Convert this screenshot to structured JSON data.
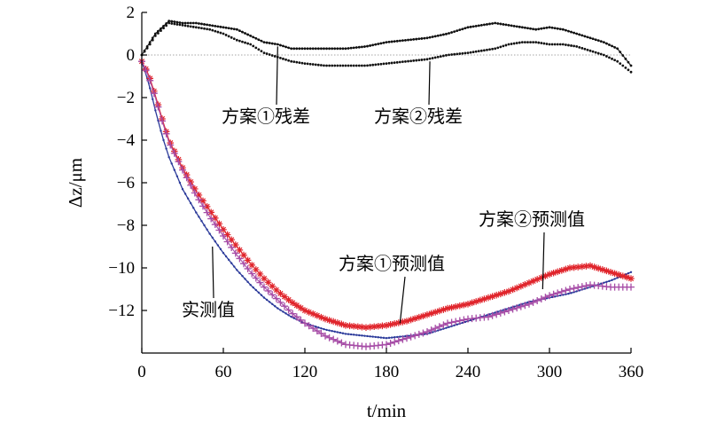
{
  "chart_data": {
    "type": "line",
    "xlabel": "t/min",
    "ylabel": "Δz/μm",
    "xlim": [
      0,
      360
    ],
    "ylim": [
      -14,
      2
    ],
    "x_ticks": [
      0,
      60,
      120,
      180,
      240,
      300,
      360
    ],
    "y_ticks": [
      2,
      0,
      -2,
      -4,
      -6,
      -8,
      -10,
      -12
    ],
    "y_tick_labels": [
      "2",
      "0",
      "−2",
      "−4",
      "−6",
      "−8",
      "−10",
      "−12"
    ],
    "zero_reference_line": true,
    "series": [
      {
        "name": "实测值",
        "color": "#2b3a9a",
        "marker": "dot",
        "x": [
          0,
          5,
          10,
          15,
          20,
          30,
          40,
          50,
          60,
          70,
          80,
          90,
          100,
          110,
          120,
          135,
          150,
          165,
          180,
          195,
          210,
          225,
          240,
          255,
          270,
          285,
          300,
          315,
          330,
          345,
          360
        ],
        "y": [
          -0.3,
          -1.3,
          -2.6,
          -3.8,
          -4.8,
          -6.3,
          -7.4,
          -8.4,
          -9.3,
          -10.1,
          -10.8,
          -11.4,
          -11.9,
          -12.3,
          -12.6,
          -12.9,
          -13.1,
          -13.2,
          -13.3,
          -13.2,
          -13.1,
          -12.8,
          -12.5,
          -12.2,
          -11.9,
          -11.6,
          -11.4,
          -11.2,
          -10.9,
          -10.6,
          -10.2
        ]
      },
      {
        "name": "方案①预测值",
        "color": "#e0242b",
        "marker": "asterisk",
        "x": [
          0,
          5,
          10,
          15,
          20,
          30,
          40,
          50,
          60,
          70,
          80,
          90,
          100,
          110,
          120,
          135,
          150,
          165,
          180,
          195,
          210,
          225,
          240,
          255,
          270,
          285,
          300,
          315,
          330,
          345,
          360
        ],
        "y": [
          -0.3,
          -0.9,
          -1.9,
          -3.0,
          -4.0,
          -5.3,
          -6.4,
          -7.3,
          -8.2,
          -9.0,
          -9.8,
          -10.5,
          -11.1,
          -11.6,
          -12.0,
          -12.4,
          -12.7,
          -12.8,
          -12.7,
          -12.5,
          -12.2,
          -11.9,
          -11.7,
          -11.4,
          -11.1,
          -10.7,
          -10.3,
          -10.0,
          -9.9,
          -10.2,
          -10.5
        ]
      },
      {
        "name": "方案②预测值",
        "color": "#a64ca6",
        "marker": "plus",
        "x": [
          0,
          5,
          10,
          15,
          20,
          30,
          40,
          50,
          60,
          70,
          80,
          90,
          100,
          110,
          120,
          135,
          150,
          165,
          180,
          195,
          210,
          225,
          240,
          255,
          270,
          285,
          300,
          315,
          330,
          345,
          360
        ],
        "y": [
          -0.3,
          -1.0,
          -2.0,
          -3.1,
          -4.1,
          -5.4,
          -6.6,
          -7.6,
          -8.5,
          -9.4,
          -10.2,
          -10.9,
          -11.5,
          -12.1,
          -12.6,
          -13.2,
          -13.6,
          -13.7,
          -13.6,
          -13.3,
          -13.0,
          -12.6,
          -12.4,
          -12.3,
          -12.0,
          -11.7,
          -11.3,
          -11.0,
          -10.8,
          -10.9,
          -10.9
        ]
      },
      {
        "name": "方案①残差",
        "color": "#111111",
        "marker": "solid-dots",
        "x": [
          0,
          5,
          10,
          20,
          30,
          40,
          50,
          60,
          70,
          80,
          90,
          100,
          110,
          120,
          135,
          150,
          165,
          180,
          195,
          210,
          225,
          240,
          250,
          260,
          270,
          280,
          290,
          300,
          310,
          320,
          330,
          340,
          350,
          360
        ],
        "y": [
          0,
          0.5,
          1.0,
          1.6,
          1.5,
          1.5,
          1.4,
          1.3,
          1.2,
          0.9,
          0.6,
          0.5,
          0.3,
          0.3,
          0.3,
          0.3,
          0.4,
          0.6,
          0.7,
          0.8,
          1.0,
          1.3,
          1.4,
          1.5,
          1.4,
          1.3,
          1.2,
          1.3,
          1.2,
          1.0,
          0.8,
          0.6,
          0.3,
          -0.5
        ]
      },
      {
        "name": "方案②残差",
        "color": "#111111",
        "marker": "dots",
        "x": [
          0,
          5,
          10,
          20,
          30,
          40,
          50,
          60,
          70,
          80,
          90,
          100,
          110,
          120,
          135,
          150,
          165,
          180,
          195,
          210,
          225,
          240,
          250,
          260,
          270,
          280,
          290,
          300,
          310,
          320,
          330,
          340,
          350,
          360
        ],
        "y": [
          0,
          0.4,
          0.9,
          1.5,
          1.4,
          1.3,
          1.2,
          1.0,
          0.7,
          0.5,
          0.1,
          -0.1,
          -0.3,
          -0.4,
          -0.5,
          -0.5,
          -0.5,
          -0.4,
          -0.3,
          -0.2,
          0.0,
          0.1,
          0.2,
          0.3,
          0.5,
          0.6,
          0.6,
          0.5,
          0.5,
          0.4,
          0.2,
          0.0,
          -0.3,
          -0.8
        ]
      }
    ],
    "annotations": [
      {
        "text": "方案①残差",
        "target_series": "方案①残差",
        "point": [
          100,
          0.4
        ]
      },
      {
        "text": "方案②残差",
        "target_series": "方案②残差",
        "point": [
          212,
          -0.3
        ]
      },
      {
        "text": "实测值",
        "target_series": "实测值",
        "point": [
          52,
          -9.0
        ]
      },
      {
        "text": "方案①预测值",
        "target_series": "方案①预测值",
        "point": [
          190,
          -12.6
        ]
      },
      {
        "text": "方案②预测值",
        "target_series": "方案②预测值",
        "point": [
          295,
          -11.0
        ]
      }
    ]
  }
}
